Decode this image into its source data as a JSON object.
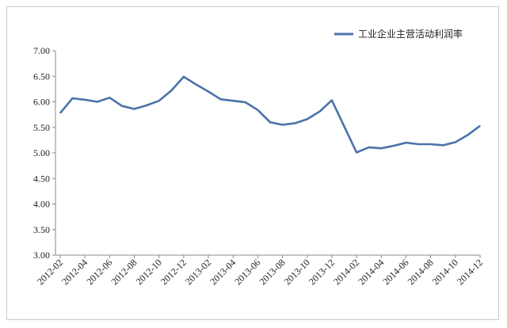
{
  "chart_data": {
    "type": "line",
    "title": "",
    "xlabel": "",
    "ylabel": "",
    "ylim": [
      3.0,
      7.0
    ],
    "y_ticks": [
      "7.00",
      "6.50",
      "6.00",
      "5.50",
      "5.00",
      "4.50",
      "4.00",
      "3.50",
      "3.00"
    ],
    "grid": false,
    "legend_position": "top-right",
    "x_tick_labels": [
      "2012-02",
      "2012-04",
      "2012-06",
      "2012-08",
      "2012-10",
      "2012-12",
      "2013-02",
      "2013-04",
      "2013-06",
      "2013-08",
      "2013-10",
      "2013-12",
      "2014-02",
      "2014-04",
      "2014-06",
      "2014-08",
      "2014-10",
      "2014-12"
    ],
    "x": [
      "2012-02",
      "2012-03",
      "2012-04",
      "2012-05",
      "2012-06",
      "2012-07",
      "2012-08",
      "2012-09",
      "2012-10",
      "2012-11",
      "2012-12",
      "2013-01",
      "2013-02",
      "2013-03",
      "2013-04",
      "2013-05",
      "2013-06",
      "2013-07",
      "2013-08",
      "2013-09",
      "2013-10",
      "2013-11",
      "2013-12",
      "2014-02",
      "2014-03",
      "2014-04",
      "2014-05",
      "2014-06",
      "2014-07",
      "2014-08",
      "2014-09",
      "2014-10",
      "2014-11",
      "2014-12"
    ],
    "series": [
      {
        "name": "工业企业主营活动利润率",
        "color": "#4a73a8",
        "values": [
          5.78,
          6.07,
          6.04,
          6.0,
          6.08,
          5.92,
          5.86,
          5.93,
          6.02,
          6.22,
          6.49,
          6.34,
          6.2,
          6.05,
          6.02,
          5.99,
          5.84,
          5.6,
          5.55,
          5.58,
          5.66,
          5.81,
          6.03,
          5.01,
          5.11,
          5.09,
          5.14,
          5.2,
          5.17,
          5.17,
          5.15,
          5.21,
          5.35,
          5.53
        ]
      }
    ]
  }
}
